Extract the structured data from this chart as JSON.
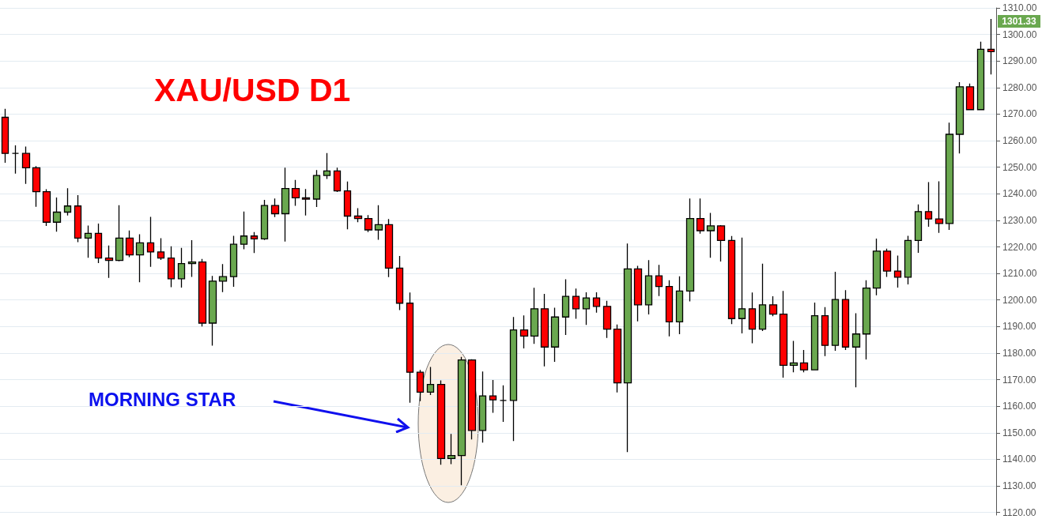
{
  "chart_data": {
    "type": "candlestick",
    "title": "XAU/USD D1",
    "annotations": [
      "MORNING STAR",
      "1301.33"
    ],
    "categories": [
      null,
      null,
      null,
      null,
      null,
      null,
      null,
      null,
      null,
      null,
      null,
      null,
      null,
      null,
      null,
      null,
      null,
      null,
      null,
      null,
      null,
      null,
      null,
      null,
      null,
      null,
      null,
      null,
      null,
      null,
      null,
      null,
      null,
      null,
      null,
      null,
      null,
      null,
      null,
      null,
      null,
      null,
      null,
      null,
      null,
      null,
      null,
      null,
      null,
      null,
      null,
      null,
      null,
      null,
      null,
      null,
      null,
      null,
      null,
      null,
      null,
      null,
      null,
      null,
      null,
      null,
      null,
      null,
      null,
      null,
      null,
      null,
      null,
      null,
      null,
      null,
      null,
      null,
      null,
      null,
      null,
      null,
      null,
      null,
      null,
      null,
      null,
      null,
      null,
      null,
      null,
      null,
      null,
      null,
      null,
      null
    ],
    "ohlc": [
      [
        1268.8,
        1272.0,
        1251.7,
        1255.2
      ],
      [
        1255.2,
        1258.2,
        1247.6,
        1255.2
      ],
      [
        1255.2,
        1257.8,
        1243.7,
        1249.8
      ],
      [
        1249.8,
        1250.4,
        1235.1,
        1240.8
      ],
      [
        1240.8,
        1241.7,
        1227.9,
        1229.3
      ],
      [
        1229.3,
        1238.6,
        1225.7,
        1233.1
      ],
      [
        1233.1,
        1242.1,
        1231.8,
        1235.4
      ],
      [
        1235.4,
        1239.5,
        1221.8,
        1223.3
      ],
      [
        1223.3,
        1228.0,
        1215.9,
        1225.1
      ],
      [
        1225.1,
        1228.8,
        1213.9,
        1215.8
      ],
      [
        1215.8,
        1220.5,
        1208.3,
        1214.9
      ],
      [
        1214.9,
        1235.7,
        1214.6,
        1223.3
      ],
      [
        1223.3,
        1226.2,
        1216.1,
        1217.0
      ],
      [
        1217.0,
        1224.8,
        1206.7,
        1221.5
      ],
      [
        1221.5,
        1231.3,
        1212.5,
        1218.1
      ],
      [
        1218.1,
        1223.3,
        1215.1,
        1215.8
      ],
      [
        1215.8,
        1220.2,
        1204.8,
        1208.0
      ],
      [
        1208.0,
        1219.6,
        1204.7,
        1213.7
      ],
      [
        1213.7,
        1222.5,
        1208.7,
        1214.3
      ],
      [
        1214.3,
        1215.5,
        1190.0,
        1191.3
      ],
      [
        1191.3,
        1209.1,
        1182.8,
        1207.1
      ],
      [
        1207.1,
        1213.5,
        1203.0,
        1208.8
      ],
      [
        1208.8,
        1224.2,
        1205.0,
        1221.0
      ],
      [
        1221.0,
        1233.3,
        1219.1,
        1224.1
      ],
      [
        1224.1,
        1225.6,
        1217.7,
        1223.0
      ],
      [
        1223.0,
        1237.7,
        1222.6,
        1235.6
      ],
      [
        1235.6,
        1238.2,
        1231.2,
        1232.5
      ],
      [
        1232.5,
        1249.8,
        1222.0,
        1242.0
      ],
      [
        1242.0,
        1245.2,
        1235.5,
        1238.5
      ],
      [
        1238.5,
        1241.8,
        1231.8,
        1238.0
      ],
      [
        1238.0,
        1248.9,
        1235.0,
        1246.9
      ],
      [
        1246.9,
        1255.3,
        1245.6,
        1248.6
      ],
      [
        1248.6,
        1249.8,
        1240.7,
        1241.1
      ],
      [
        1241.1,
        1244.6,
        1226.6,
        1231.6
      ],
      [
        1231.6,
        1234.6,
        1229.3,
        1230.7
      ],
      [
        1230.7,
        1232.0,
        1225.6,
        1226.4
      ],
      [
        1226.4,
        1235.7,
        1222.7,
        1228.4
      ],
      [
        1228.4,
        1230.5,
        1208.6,
        1212.0
      ],
      [
        1212.0,
        1216.6,
        1196.2,
        1198.8
      ],
      [
        1198.8,
        1202.8,
        1161.3,
        1172.8
      ],
      [
        1172.8,
        1173.7,
        1161.9,
        1165.3
      ],
      [
        1165.3,
        1174.8,
        1164.2,
        1168.2
      ],
      [
        1168.2,
        1169.7,
        1138.0,
        1140.3
      ],
      [
        1140.3,
        1149.6,
        1138.2,
        1141.4
      ],
      [
        1141.4,
        1178.6,
        1130.2,
        1177.4
      ],
      [
        1177.4,
        1177.7,
        1147.5,
        1150.9
      ],
      [
        1150.9,
        1173.1,
        1146.3,
        1163.9
      ],
      [
        1163.9,
        1169.9,
        1157.5,
        1162.4
      ],
      [
        1162.2,
        1167.9,
        1154.1,
        1162.2
      ],
      [
        1162.2,
        1193.6,
        1146.9,
        1188.7
      ],
      [
        1188.7,
        1194.2,
        1181.8,
        1186.4
      ],
      [
        1186.4,
        1204.6,
        1183.5,
        1196.7
      ],
      [
        1196.7,
        1202.3,
        1175.0,
        1182.3
      ],
      [
        1182.3,
        1197.1,
        1176.7,
        1193.6
      ],
      [
        1193.6,
        1207.8,
        1186.8,
        1201.4
      ],
      [
        1201.4,
        1204.3,
        1192.9,
        1196.7
      ],
      [
        1196.7,
        1202.9,
        1190.6,
        1200.8
      ],
      [
        1200.8,
        1202.9,
        1195.2,
        1197.6
      ],
      [
        1197.6,
        1199.7,
        1185.7,
        1189.0
      ],
      [
        1189.0,
        1190.8,
        1165.2,
        1168.8
      ],
      [
        1168.8,
        1221.3,
        1142.7,
        1211.7
      ],
      [
        1211.7,
        1212.9,
        1192.0,
        1198.2
      ],
      [
        1198.2,
        1215.0,
        1194.6,
        1209.1
      ],
      [
        1209.1,
        1213.2,
        1201.5,
        1205.1
      ],
      [
        1205.1,
        1207.4,
        1186.3,
        1191.8
      ],
      [
        1191.8,
        1208.9,
        1187.1,
        1203.4
      ],
      [
        1203.4,
        1238.2,
        1199.5,
        1230.7
      ],
      [
        1230.7,
        1238.2,
        1225.0,
        1226.1
      ],
      [
        1226.1,
        1232.8,
        1215.9,
        1227.9
      ],
      [
        1227.9,
        1228.2,
        1214.5,
        1222.4
      ],
      [
        1222.4,
        1224.1,
        1190.9,
        1193.0
      ],
      [
        1193.0,
        1223.5,
        1187.4,
        1196.7
      ],
      [
        1196.7,
        1202.8,
        1183.7,
        1189.0
      ],
      [
        1189.0,
        1213.7,
        1188.3,
        1198.2
      ],
      [
        1198.2,
        1201.4,
        1193.9,
        1194.7
      ],
      [
        1194.7,
        1203.4,
        1170.8,
        1175.4
      ],
      [
        1175.4,
        1184.6,
        1172.8,
        1176.3
      ],
      [
        1176.3,
        1181.2,
        1172.8,
        1173.7
      ],
      [
        1173.7,
        1199.0,
        1173.7,
        1194.1
      ],
      [
        1194.1,
        1197.3,
        1178.9,
        1182.9
      ],
      [
        1182.9,
        1210.6,
        1180.9,
        1200.2
      ],
      [
        1200.2,
        1203.7,
        1181.2,
        1182.3
      ],
      [
        1182.3,
        1195.0,
        1167.1,
        1187.2
      ],
      [
        1187.2,
        1207.4,
        1177.6,
        1204.5
      ],
      [
        1204.5,
        1223.1,
        1201.8,
        1218.4
      ],
      [
        1218.4,
        1219.3,
        1208.7,
        1210.9
      ],
      [
        1210.9,
        1216.7,
        1204.7,
        1208.6
      ],
      [
        1208.6,
        1224.2,
        1205.9,
        1222.4
      ],
      [
        1222.4,
        1236.0,
        1217.8,
        1233.3
      ],
      [
        1233.3,
        1244.4,
        1227.6,
        1230.5
      ],
      [
        1230.5,
        1244.7,
        1225.3,
        1228.8
      ],
      [
        1228.8,
        1266.8,
        1226.4,
        1262.4
      ],
      [
        1262.4,
        1282.0,
        1255.2,
        1280.3
      ],
      [
        1280.3,
        1281.5,
        1271.7,
        1271.7
      ],
      [
        1271.7,
        1297.3,
        1271.7,
        1294.4
      ],
      [
        1294.4,
        1305.8,
        1284.9,
        1293.5
      ]
    ],
    "ylim": [
      1119,
      1310
    ],
    "yticks": [
      {
        "value": 1120,
        "label": "1120.00"
      },
      {
        "value": 1130,
        "label": "1130.00"
      },
      {
        "value": 1140,
        "label": "1140.00"
      },
      {
        "value": 1150,
        "label": "1150.00"
      },
      {
        "value": 1160,
        "label": "1160.00"
      },
      {
        "value": 1170,
        "label": "1170.00"
      },
      {
        "value": 1180,
        "label": "1180.00"
      },
      {
        "value": 1190,
        "label": "1190.00"
      },
      {
        "value": 1200,
        "label": "1200.00"
      },
      {
        "value": 1210,
        "label": "1210.00"
      },
      {
        "value": 1220,
        "label": "1220.00"
      },
      {
        "value": 1230,
        "label": "1230.00"
      },
      {
        "value": 1240,
        "label": "1240.00"
      },
      {
        "value": 1250,
        "label": "1250.00"
      },
      {
        "value": 1260,
        "label": "1260.00"
      },
      {
        "value": 1270,
        "label": "1270.00"
      },
      {
        "value": 1280,
        "label": "1280.00"
      },
      {
        "value": 1290,
        "label": "1290.00"
      },
      {
        "value": 1300,
        "label": "1300.00"
      },
      {
        "value": 1310,
        "label": "1310.00"
      }
    ],
    "grid": "y",
    "tick_labels": "y"
  }
}
